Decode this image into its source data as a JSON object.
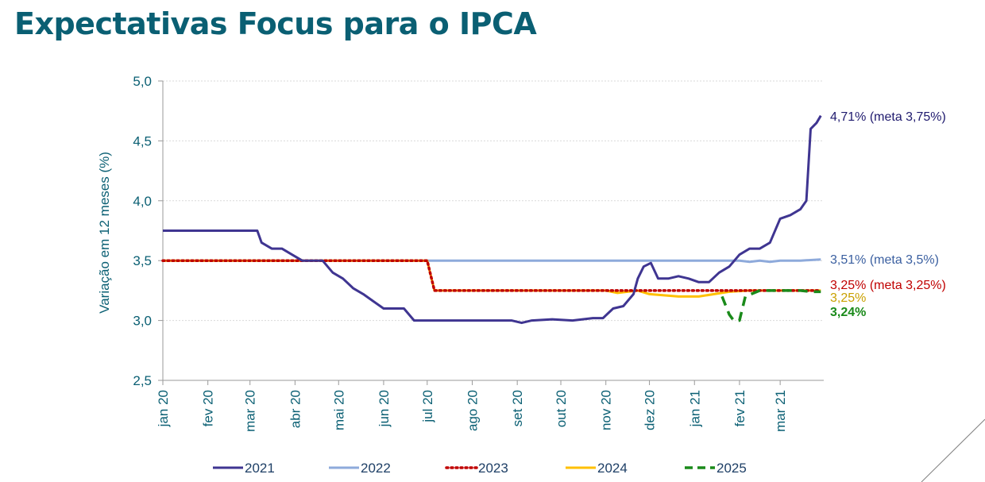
{
  "title": "Expectativas Focus para o IPCA",
  "chart_data": {
    "type": "line",
    "title": "Expectativas Focus para o IPCA",
    "ylabel": "Variação em 12 meses (%)",
    "xlabel": "",
    "ylim": [
      2.5,
      5.0
    ],
    "yticks": [
      "2,5",
      "3,0",
      "3,5",
      "4,0",
      "4,5",
      "5,0"
    ],
    "x_ticks": [
      "jan 20",
      "fev 20",
      "mar 20",
      "abr 20",
      "mai 20",
      "jun 20",
      "jul 20",
      "ago 20",
      "set 20",
      "out 20",
      "nov 20",
      "dez 20",
      "jan 21",
      "fev 21",
      "mar 21"
    ],
    "grid": true,
    "legend": "bottom",
    "series": [
      {
        "name": "2021",
        "color": "#3f3591",
        "dash": "solid",
        "points": [
          [
            "2020-01-01",
            3.75
          ],
          [
            "2020-03-02",
            3.75
          ],
          [
            "2020-03-06",
            3.75
          ],
          [
            "2020-03-09",
            3.65
          ],
          [
            "2020-03-16",
            3.6
          ],
          [
            "2020-03-23",
            3.6
          ],
          [
            "2020-03-30",
            3.55
          ],
          [
            "2020-04-06",
            3.5
          ],
          [
            "2020-04-13",
            3.5
          ],
          [
            "2020-04-20",
            3.5
          ],
          [
            "2020-04-27",
            3.4
          ],
          [
            "2020-05-04",
            3.35
          ],
          [
            "2020-05-11",
            3.27
          ],
          [
            "2020-05-18",
            3.22
          ],
          [
            "2020-05-25",
            3.16
          ],
          [
            "2020-06-01",
            3.1
          ],
          [
            "2020-06-08",
            3.1
          ],
          [
            "2020-06-15",
            3.1
          ],
          [
            "2020-06-22",
            3.0
          ],
          [
            "2020-07-31",
            3.0
          ],
          [
            "2020-08-28",
            3.0
          ],
          [
            "2020-09-04",
            2.98
          ],
          [
            "2020-09-11",
            3.0
          ],
          [
            "2020-09-25",
            3.01
          ],
          [
            "2020-10-09",
            3.0
          ],
          [
            "2020-10-23",
            3.02
          ],
          [
            "2020-10-30",
            3.02
          ],
          [
            "2020-11-06",
            3.1
          ],
          [
            "2020-11-13",
            3.12
          ],
          [
            "2020-11-20",
            3.22
          ],
          [
            "2020-11-23",
            3.35
          ],
          [
            "2020-11-27",
            3.45
          ],
          [
            "2020-12-02",
            3.48
          ],
          [
            "2020-12-07",
            3.35
          ],
          [
            "2020-12-14",
            3.35
          ],
          [
            "2020-12-21",
            3.37
          ],
          [
            "2020-12-28",
            3.35
          ],
          [
            "2021-01-04",
            3.32
          ],
          [
            "2021-01-11",
            3.32
          ],
          [
            "2021-01-18",
            3.4
          ],
          [
            "2021-01-25",
            3.45
          ],
          [
            "2021-02-01",
            3.55
          ],
          [
            "2021-02-08",
            3.6
          ],
          [
            "2021-02-15",
            3.6
          ],
          [
            "2021-02-22",
            3.65
          ],
          [
            "2021-03-01",
            3.85
          ],
          [
            "2021-03-08",
            3.88
          ],
          [
            "2021-03-15",
            3.93
          ],
          [
            "2021-03-19",
            4.0
          ],
          [
            "2021-03-22",
            4.6
          ],
          [
            "2021-03-26",
            4.65
          ],
          [
            "2021-03-29",
            4.71
          ]
        ]
      },
      {
        "name": "2022",
        "color": "#8eaadb",
        "dash": "solid",
        "points": [
          [
            "2020-01-01",
            3.5
          ],
          [
            "2021-02-01",
            3.5
          ],
          [
            "2021-02-08",
            3.49
          ],
          [
            "2021-02-15",
            3.5
          ],
          [
            "2021-02-22",
            3.49
          ],
          [
            "2021-03-01",
            3.5
          ],
          [
            "2021-03-15",
            3.5
          ],
          [
            "2021-03-29",
            3.51
          ]
        ]
      },
      {
        "name": "2023",
        "color": "#c00000",
        "dash": "dotted",
        "points": [
          [
            "2020-01-01",
            3.5
          ],
          [
            "2020-07-01",
            3.5
          ],
          [
            "2020-07-06",
            3.25
          ],
          [
            "2021-03-29",
            3.25
          ]
        ]
      },
      {
        "name": "2024",
        "color": "#ffc000",
        "dash": "solid",
        "points": [
          [
            "2020-01-01",
            3.5
          ],
          [
            "2020-07-01",
            3.5
          ],
          [
            "2020-07-06",
            3.25
          ],
          [
            "2020-11-01",
            3.25
          ],
          [
            "2020-11-09",
            3.23
          ],
          [
            "2020-11-23",
            3.25
          ],
          [
            "2020-12-01",
            3.22
          ],
          [
            "2020-12-21",
            3.2
          ],
          [
            "2021-01-04",
            3.2
          ],
          [
            "2021-01-25",
            3.24
          ],
          [
            "2021-02-08",
            3.25
          ],
          [
            "2021-03-29",
            3.25
          ]
        ]
      },
      {
        "name": "2025",
        "color": "#1a8a1a",
        "dash": "dashed",
        "points": [
          [
            "2021-01-20",
            3.2
          ],
          [
            "2021-01-25",
            3.05
          ],
          [
            "2021-01-28",
            3.0
          ],
          [
            "2021-02-01",
            3.0
          ],
          [
            "2021-02-05",
            3.2
          ],
          [
            "2021-02-15",
            3.25
          ],
          [
            "2021-03-15",
            3.25
          ],
          [
            "2021-03-22",
            3.24
          ],
          [
            "2021-03-29",
            3.24
          ]
        ]
      }
    ],
    "annotations": [
      {
        "text": "4,71% (meta 3,75%)",
        "color": "#1f1a6e"
      },
      {
        "text": "3,51% (meta 3,5%)",
        "color": "#3a5fa0"
      },
      {
        "text": "3,25% (meta 3,25%)",
        "color": "#c00000"
      },
      {
        "text": "3,25%",
        "color": "#c9a000"
      },
      {
        "text": "3,24%",
        "color": "#1a8a1a"
      }
    ]
  }
}
